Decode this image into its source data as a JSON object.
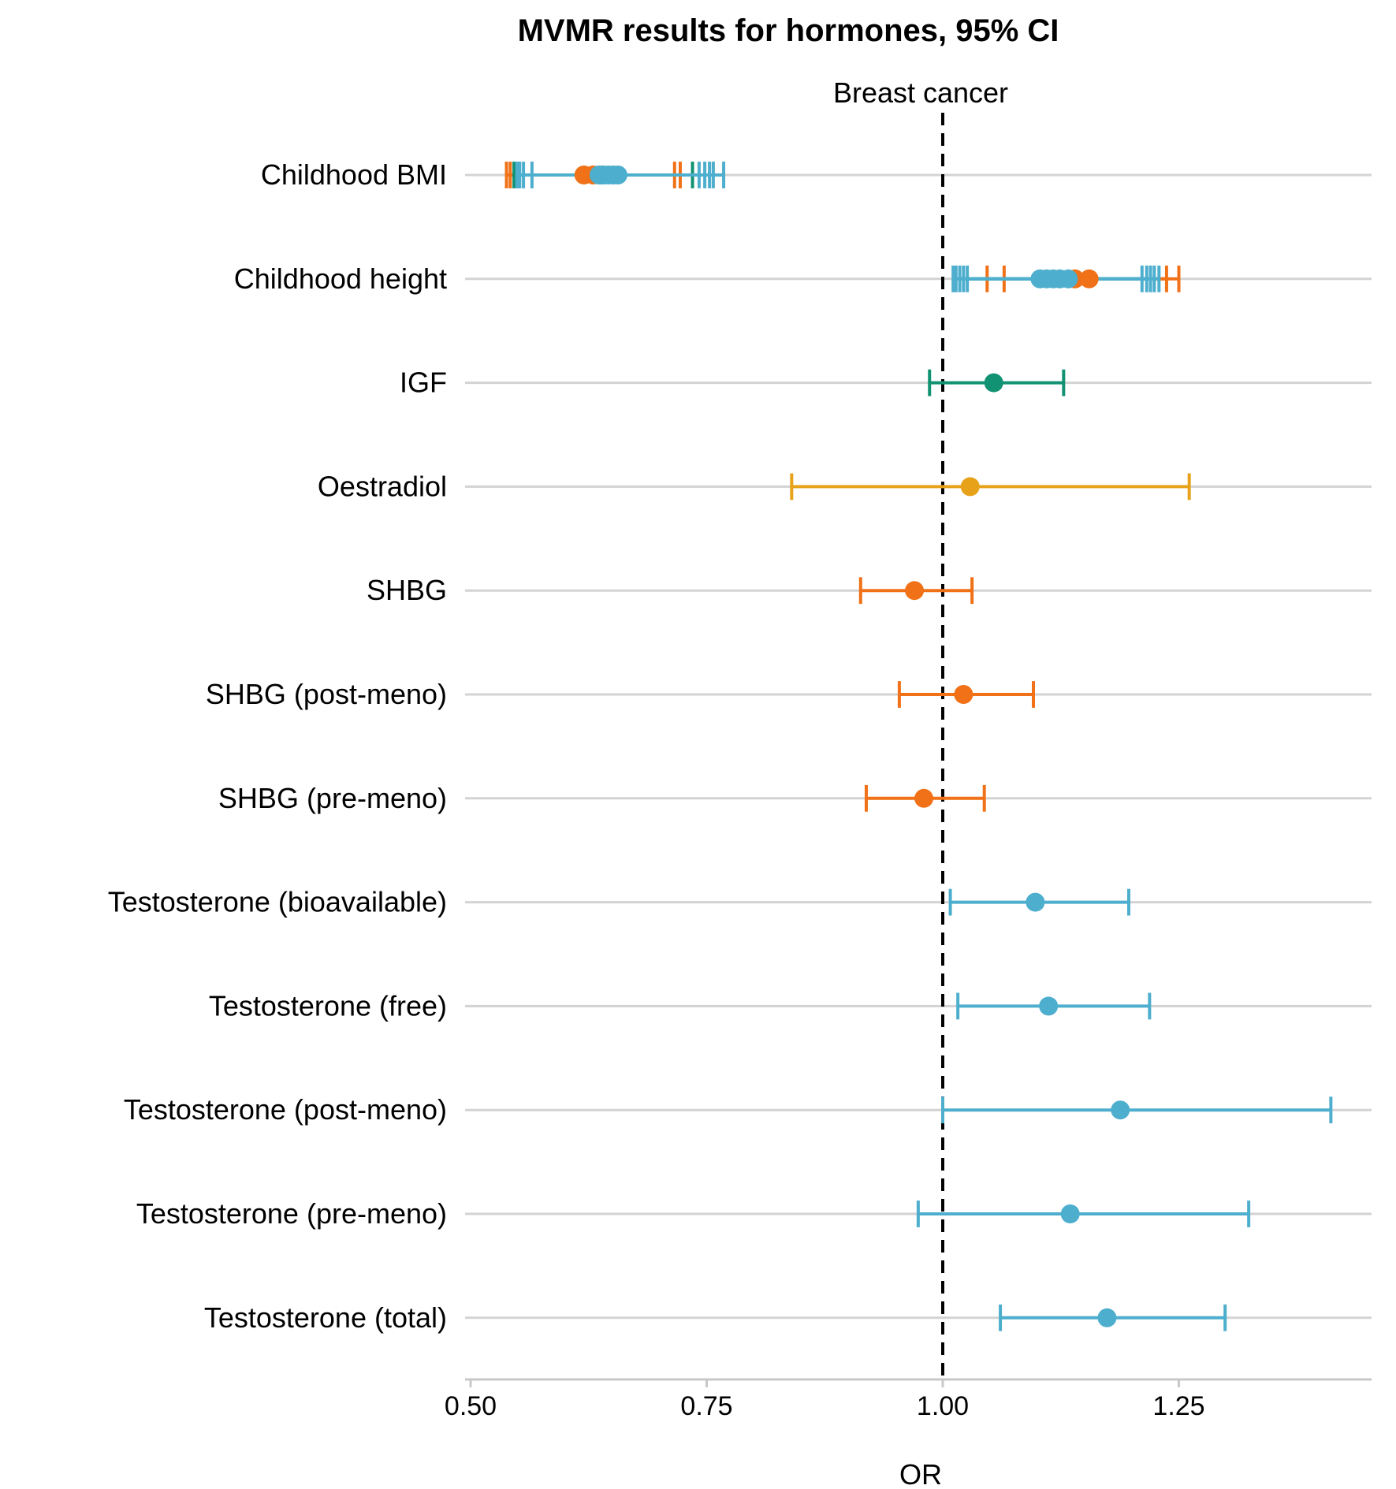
{
  "chart_data": {
    "type": "forest",
    "title": "MVMR results for hormones, 95% CI",
    "facet_label": "Breast cancer",
    "xlabel": "OR",
    "xlim": [
      0.5,
      1.455
    ],
    "x_ticks": [
      0.5,
      0.75,
      1.0,
      1.25
    ],
    "x_tick_labels": [
      "0.50",
      "0.75",
      "1.00",
      "1.25"
    ],
    "reference_line": 1.0,
    "colors": {
      "grid": "#d3d3d3",
      "axis": "#c8c8c8",
      "orange": "#f07117",
      "blue": "#4daece",
      "green": "#119273",
      "gold": "#e8a21a"
    },
    "categories": [
      "Childhood BMI",
      "Childhood height",
      "IGF",
      "Oestradiol",
      "SHBG",
      "SHBG (post-meno)",
      "SHBG (pre-meno)",
      "Testosterone (bioavailable)",
      "Testosterone (free)",
      "Testosterone (post-meno)",
      "Testosterone (pre-meno)",
      "Testosterone (total)"
    ],
    "estimates": [
      {
        "category": "Childhood BMI",
        "color": "orange",
        "or": 0.62,
        "lo": 0.538,
        "hi": 0.716
      },
      {
        "category": "Childhood BMI",
        "color": "orange",
        "or": 0.63,
        "lo": 0.542,
        "hi": 0.722
      },
      {
        "category": "Childhood BMI",
        "color": "green",
        "or": 0.64,
        "lo": 0.546,
        "hi": 0.735
      },
      {
        "category": "Childhood BMI",
        "color": "blue",
        "or": 0.636,
        "lo": 0.549,
        "hi": 0.742
      },
      {
        "category": "Childhood BMI",
        "color": "blue",
        "or": 0.641,
        "lo": 0.55,
        "hi": 0.748
      },
      {
        "category": "Childhood BMI",
        "color": "blue",
        "or": 0.646,
        "lo": 0.552,
        "hi": 0.753
      },
      {
        "category": "Childhood BMI",
        "color": "blue",
        "or": 0.651,
        "lo": 0.556,
        "hi": 0.757
      },
      {
        "category": "Childhood BMI",
        "color": "blue",
        "or": 0.656,
        "lo": 0.565,
        "hi": 0.768
      },
      {
        "category": "Childhood height",
        "color": "orange",
        "or": 1.155,
        "lo": 1.047,
        "hi": 1.25
      },
      {
        "category": "Childhood height",
        "color": "orange",
        "or": 1.14,
        "lo": 1.065,
        "hi": 1.237
      },
      {
        "category": "Childhood height",
        "color": "blue",
        "or": 1.103,
        "lo": 1.011,
        "hi": 1.211
      },
      {
        "category": "Childhood height",
        "color": "blue",
        "or": 1.11,
        "lo": 1.014,
        "hi": 1.216
      },
      {
        "category": "Childhood height",
        "color": "blue",
        "or": 1.117,
        "lo": 1.018,
        "hi": 1.22
      },
      {
        "category": "Childhood height",
        "color": "blue",
        "or": 1.124,
        "lo": 1.022,
        "hi": 1.224
      },
      {
        "category": "Childhood height",
        "color": "blue",
        "or": 1.133,
        "lo": 1.026,
        "hi": 1.229
      },
      {
        "category": "IGF",
        "color": "green",
        "or": 1.054,
        "lo": 0.986,
        "hi": 1.128
      },
      {
        "category": "Oestradiol",
        "color": "gold",
        "or": 1.029,
        "lo": 0.84,
        "hi": 1.261
      },
      {
        "category": "SHBG",
        "color": "orange",
        "or": 0.97,
        "lo": 0.913,
        "hi": 1.031
      },
      {
        "category": "SHBG (post-meno)",
        "color": "orange",
        "or": 1.022,
        "lo": 0.954,
        "hi": 1.096
      },
      {
        "category": "SHBG (pre-meno)",
        "color": "orange",
        "or": 0.98,
        "lo": 0.919,
        "hi": 1.044
      },
      {
        "category": "Testosterone (bioavailable)",
        "color": "blue",
        "or": 1.098,
        "lo": 1.008,
        "hi": 1.197
      },
      {
        "category": "Testosterone (free)",
        "color": "blue",
        "or": 1.112,
        "lo": 1.016,
        "hi": 1.219
      },
      {
        "category": "Testosterone (post-meno)",
        "color": "blue",
        "or": 1.188,
        "lo": 1.0,
        "hi": 1.411
      },
      {
        "category": "Testosterone (pre-meno)",
        "color": "blue",
        "or": 1.135,
        "lo": 0.974,
        "hi": 1.324
      },
      {
        "category": "Testosterone (total)",
        "color": "blue",
        "or": 1.174,
        "lo": 1.061,
        "hi": 1.299
      }
    ]
  }
}
